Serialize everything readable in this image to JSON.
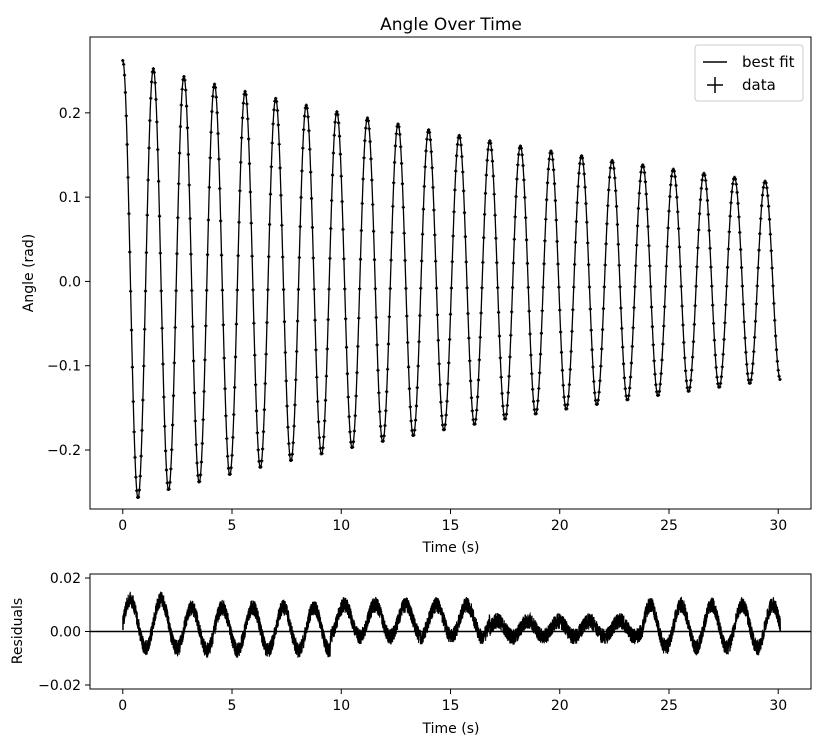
{
  "chart_data": [
    {
      "type": "line",
      "title": "Angle Over Time",
      "xlabel": "Time (s)",
      "ylabel": "Angle (rad)",
      "xlim": [
        -1.5,
        31.5
      ],
      "ylim": [
        -0.27,
        0.29
      ],
      "xticks": [
        0,
        5,
        10,
        15,
        20,
        25,
        30
      ],
      "yticks": [
        -0.2,
        -0.1,
        0.0,
        0.1,
        0.2
      ],
      "xtick_labels": [
        "0",
        "5",
        "10",
        "15",
        "20",
        "25",
        "30"
      ],
      "ytick_labels": [
        "−0.2",
        "−0.1",
        "0.0",
        "0.1",
        "0.2"
      ],
      "legend": {
        "placement": "top-right",
        "entries": [
          {
            "label": "best fit",
            "marker": "line"
          },
          {
            "label": "data",
            "marker": "errorbar-point"
          }
        ]
      },
      "series": [
        {
          "name": "best fit",
          "model": "damped-cosine",
          "amplitude": 0.262,
          "decay_time": 37.2,
          "period": 1.4,
          "phase": 0.0,
          "x_start": 0.0,
          "x_end": 30.1
        },
        {
          "name": "data",
          "model": "samples-of-fit",
          "x_start": 0.0,
          "x_end": 30.1,
          "x_step": 0.04
        }
      ],
      "grid": false,
      "color": "#000000"
    },
    {
      "type": "line",
      "title": "",
      "xlabel": "Time (s)",
      "ylabel": "Residuals",
      "xlim": [
        -1.5,
        31.5
      ],
      "ylim": [
        -0.0215,
        0.0215
      ],
      "xticks": [
        0,
        5,
        10,
        15,
        20,
        25,
        30
      ],
      "yticks": [
        -0.02,
        0.0,
        0.02
      ],
      "xtick_labels": [
        "0",
        "5",
        "10",
        "15",
        "20",
        "25",
        "30"
      ],
      "ytick_labels": [
        "−0.02",
        "0.00",
        "0.02"
      ],
      "reference_line": 0.0,
      "segments": [
        {
          "x_start": 0.0,
          "x_end": 2.5,
          "amplitude": 0.009,
          "offset": 0.003
        },
        {
          "x_start": 2.5,
          "x_end": 9.5,
          "amplitude": 0.008,
          "offset": 0.001
        },
        {
          "x_start": 9.5,
          "x_end": 16.8,
          "amplitude": 0.006,
          "offset": 0.004
        },
        {
          "x_start": 16.8,
          "x_end": 23.8,
          "amplitude": 0.003,
          "offset": 0.001
        },
        {
          "x_start": 23.8,
          "x_end": 30.1,
          "amplitude": 0.008,
          "offset": 0.002
        }
      ],
      "grid": false,
      "color": "#000000"
    }
  ]
}
